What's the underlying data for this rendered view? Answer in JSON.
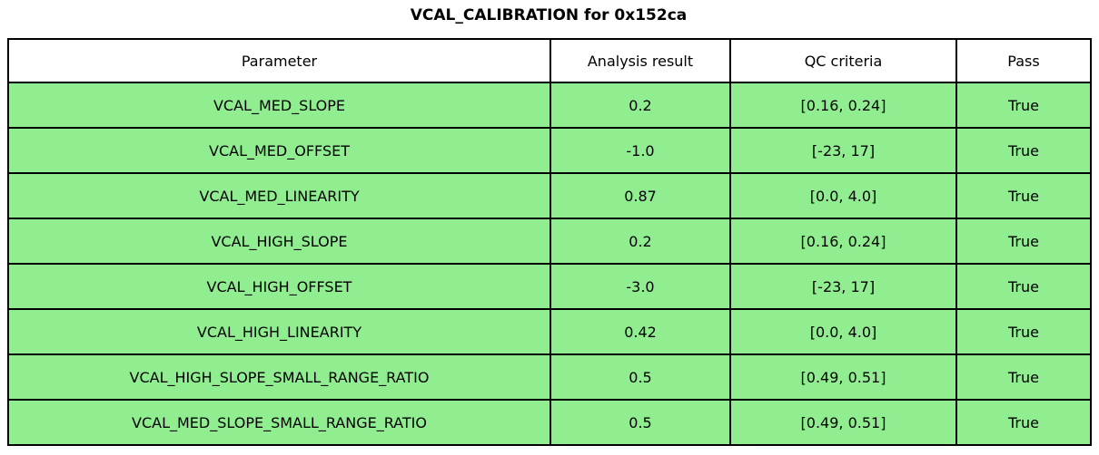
{
  "title": "VCAL_CALIBRATION for 0x152ca",
  "colors": {
    "pass_row_bg": "#90EE90",
    "header_bg": "#FFFFFF",
    "border": "#000000",
    "text": "#000000"
  },
  "chart_data": {
    "type": "table",
    "title": "VCAL_CALIBRATION for 0x152ca",
    "columns": [
      "Parameter",
      "Analysis result",
      "QC criteria",
      "Pass"
    ],
    "rows": [
      [
        "VCAL_MED_SLOPE",
        "0.2",
        "[0.16, 0.24]",
        "True"
      ],
      [
        "VCAL_MED_OFFSET",
        "-1.0",
        "[-23, 17]",
        "True"
      ],
      [
        "VCAL_MED_LINEARITY",
        "0.87",
        "[0.0, 4.0]",
        "True"
      ],
      [
        "VCAL_HIGH_SLOPE",
        "0.2",
        "[0.16, 0.24]",
        "True"
      ],
      [
        "VCAL_HIGH_OFFSET",
        "-3.0",
        "[-23, 17]",
        "True"
      ],
      [
        "VCAL_HIGH_LINEARITY",
        "0.42",
        "[0.0, 4.0]",
        "True"
      ],
      [
        "VCAL_HIGH_SLOPE_SMALL_RANGE_RATIO",
        "0.5",
        "[0.49, 0.51]",
        "True"
      ],
      [
        "VCAL_MED_SLOPE_SMALL_RANGE_RATIO",
        "0.5",
        "[0.49, 0.51]",
        "True"
      ]
    ],
    "all_rows_pass": true,
    "layout": {
      "grid": true,
      "row_color": "#90EE90",
      "header_color": "#FFFFFF"
    }
  }
}
